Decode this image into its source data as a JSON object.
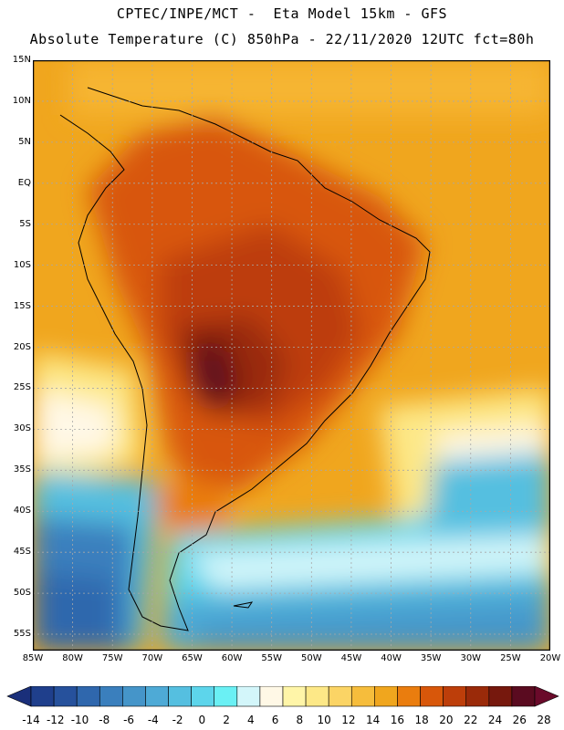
{
  "header": {
    "line1": "CPTEC/INPE/MCT -  Eta Model 15km - GFS",
    "line2": "Absolute Temperature (C) 850hPa - 22/11/2020 12UTC fct=80h"
  },
  "map": {
    "lat_labels": [
      "15N",
      "10N",
      "5N",
      "EQ",
      "5S",
      "10S",
      "15S",
      "20S",
      "25S",
      "30S",
      "35S",
      "40S",
      "45S",
      "50S",
      "55S"
    ],
    "lon_labels": [
      "85W",
      "80W",
      "75W",
      "70W",
      "65W",
      "60W",
      "55W",
      "50W",
      "45W",
      "40W",
      "35W",
      "30W",
      "25W",
      "20W"
    ],
    "lon_range": [
      -85,
      -20
    ],
    "lat_range": [
      15,
      -57
    ],
    "grid": true
  },
  "colorbar": {
    "labels": [
      "-14",
      "-12",
      "-10",
      "-8",
      "-6",
      "-4",
      "-2",
      "0",
      "2",
      "4",
      "6",
      "8",
      "10",
      "12",
      "14",
      "16",
      "18",
      "20",
      "22",
      "24",
      "26",
      "28"
    ],
    "colors": [
      "#1f3f8c",
      "#26519c",
      "#2f67ad",
      "#3a7fbd",
      "#4595c9",
      "#4eaad6",
      "#55bfe0",
      "#5dd5eb",
      "#6af0f4",
      "#d3f6fa",
      "#fff8e6",
      "#fff5a8",
      "#fde887",
      "#fbd465",
      "#f6bd3c",
      "#f0a61e",
      "#ea7d0e",
      "#d8570a",
      "#bd3e0a",
      "#9a2a09",
      "#76180d",
      "#5a0b20"
    ]
  }
}
